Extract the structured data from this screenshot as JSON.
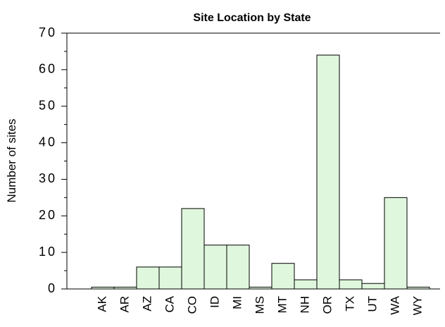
{
  "chart_data": {
    "type": "bar",
    "title": "Site Location by State",
    "y_label": "Number of sites",
    "categories": [
      "AK",
      "AR",
      "AZ",
      "CA",
      "CO",
      "ID",
      "MI",
      "MS",
      "MT",
      "NH",
      "OR",
      "TX",
      "UT",
      "WA",
      "WY"
    ],
    "values": [
      0.5,
      0.5,
      6,
      6,
      22,
      12,
      12,
      0.5,
      7,
      2.5,
      64,
      2.5,
      1.5,
      25,
      0.5
    ],
    "color": "#dff7dd",
    "ylim": [
      0,
      70
    ],
    "yticks": [
      0,
      10,
      20,
      30,
      40,
      50,
      60,
      70
    ]
  }
}
